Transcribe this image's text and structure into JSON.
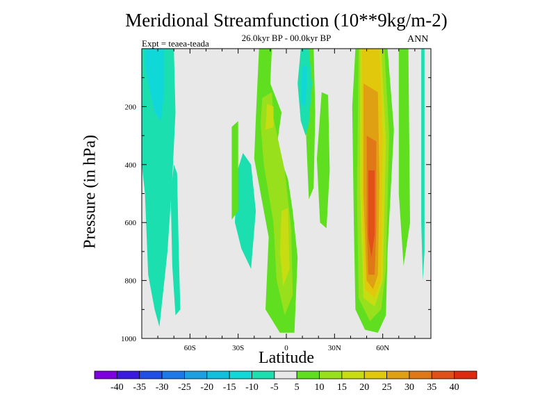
{
  "chart_data": {
    "type": "contour",
    "title": "Meridional Streamfunction (10**9kg/m-2)",
    "subtitle": "26.0kyr BP - 00.0kyr BP",
    "left_annotation": "Expt = teaea-teada",
    "right_annotation": "ANN",
    "xlabel": "Latitude",
    "ylabel": "Pressure (in hPa)",
    "xlim": [
      -90,
      90
    ],
    "ylim": [
      0,
      1000
    ],
    "y_inverted": true,
    "x_ticks": [
      {
        "value": -60,
        "label": "60S"
      },
      {
        "value": -30,
        "label": "30S"
      },
      {
        "value": 0,
        "label": "0"
      },
      {
        "value": 30,
        "label": "30N"
      },
      {
        "value": 60,
        "label": "60N"
      }
    ],
    "y_ticks": [
      {
        "value": 200,
        "label": "200"
      },
      {
        "value": 400,
        "label": "400"
      },
      {
        "value": 600,
        "label": "600"
      },
      {
        "value": 800,
        "label": "800"
      },
      {
        "value": 1000,
        "label": "1000"
      }
    ],
    "colorbar": {
      "levels": [
        "-40",
        "-35",
        "-30",
        "-25",
        "-20",
        "-15",
        "-10",
        "-5",
        "5",
        "10",
        "15",
        "20",
        "25",
        "30",
        "35",
        "40"
      ],
      "colors": [
        "#7f00df",
        "#3a1ae0",
        "#1f4fe6",
        "#1c7ae8",
        "#1ca0e2",
        "#12bfdc",
        "#10d8d8",
        "#1cdfb0",
        "#e8e8e8",
        "#5fdf20",
        "#99e01c",
        "#c8dc12",
        "#e2c80c",
        "#e0a014",
        "#e07818",
        "#e05018",
        "#dd2a10"
      ]
    },
    "regions": [
      {
        "name": "sh-column-light",
        "value": -7.5,
        "points": [
          [
            -90,
            0
          ],
          [
            -70,
            0
          ],
          [
            -69,
            220
          ],
          [
            -71,
            450
          ],
          [
            -74,
            700
          ],
          [
            -79,
            960
          ],
          [
            -82,
            900
          ],
          [
            -86,
            780
          ],
          [
            -88,
            500
          ],
          [
            -90,
            400
          ]
        ]
      },
      {
        "name": "sh-column-core",
        "value": -12.5,
        "points": [
          [
            -88,
            0
          ],
          [
            -76,
            0
          ],
          [
            -76,
            150
          ],
          [
            -78,
            250
          ],
          [
            -82,
            220
          ],
          [
            -86,
            120
          ],
          [
            -88,
            60
          ]
        ]
      },
      {
        "name": "sh-strip-60s",
        "value": -7.5,
        "points": [
          [
            -70,
            400
          ],
          [
            -68,
            430
          ],
          [
            -67,
            700
          ],
          [
            -66,
            900
          ],
          [
            -69,
            920
          ],
          [
            -71,
            750
          ],
          [
            -72,
            500
          ]
        ]
      },
      {
        "name": "sh-trough",
        "value": -7.5,
        "points": [
          [
            -31,
            430
          ],
          [
            -27,
            360
          ],
          [
            -22,
            400
          ],
          [
            -19,
            560
          ],
          [
            -22,
            760
          ],
          [
            -28,
            690
          ],
          [
            -32,
            600
          ]
        ]
      },
      {
        "name": "tropical-cell",
        "value": 7.5,
        "points": [
          [
            -17,
            0
          ],
          [
            -9,
            0
          ],
          [
            -10,
            120
          ],
          [
            -3,
            220
          ],
          [
            -6,
            340
          ],
          [
            1,
            450
          ],
          [
            4,
            560
          ],
          [
            7,
            720
          ],
          [
            5,
            980
          ],
          [
            -4,
            980
          ],
          [
            -13,
            900
          ],
          [
            -11,
            650
          ],
          [
            -20,
            380
          ],
          [
            -19,
            240
          ],
          [
            -18,
            120
          ]
        ]
      },
      {
        "name": "tropical-cell-inner",
        "value": 12.5,
        "points": [
          [
            -15,
            170
          ],
          [
            -9,
            150
          ],
          [
            -8,
            240
          ],
          [
            -1,
            420
          ],
          [
            3,
            620
          ],
          [
            4,
            850
          ],
          [
            -1,
            920
          ],
          [
            -6,
            800
          ],
          [
            -8,
            600
          ],
          [
            -14,
            400
          ],
          [
            -16,
            260
          ]
        ]
      },
      {
        "name": "tropical-core-upper",
        "value": 17.5,
        "points": [
          [
            -12,
            190
          ],
          [
            -8,
            200
          ],
          [
            -8,
            270
          ],
          [
            -13,
            280
          ]
        ]
      },
      {
        "name": "tropical-core-lower",
        "value": 17.5,
        "points": [
          [
            -3,
            560
          ],
          [
            1,
            550
          ],
          [
            2,
            760
          ],
          [
            -2,
            820
          ],
          [
            -4,
            700
          ]
        ]
      },
      {
        "name": "sh-subtropic-bar",
        "value": 7.5,
        "points": [
          [
            -34,
            270
          ],
          [
            -30,
            250
          ],
          [
            -30,
            560
          ],
          [
            -34,
            590
          ]
        ]
      },
      {
        "name": "nh-ferrel-thin",
        "value": 7.5,
        "points": [
          [
            14,
            0
          ],
          [
            17,
            0
          ],
          [
            18,
            220
          ],
          [
            17,
            480
          ],
          [
            14,
            520
          ],
          [
            12,
            260
          ]
        ]
      },
      {
        "name": "nh-neg-tongue",
        "value": -7.5,
        "points": [
          [
            9,
            0
          ],
          [
            14,
            0
          ],
          [
            16,
            120
          ],
          [
            14,
            260
          ],
          [
            12,
            300
          ],
          [
            9,
            250
          ],
          [
            7,
            120
          ]
        ]
      },
      {
        "name": "nh-neg-core",
        "value": -12.5,
        "points": [
          [
            10,
            60
          ],
          [
            13,
            60
          ],
          [
            12,
            200
          ],
          [
            9,
            190
          ]
        ]
      },
      {
        "name": "nh-mid-light",
        "value": 7.5,
        "points": [
          [
            22,
            150
          ],
          [
            26,
            160
          ],
          [
            27,
            420
          ],
          [
            25,
            620
          ],
          [
            21,
            600
          ],
          [
            19,
            380
          ]
        ]
      },
      {
        "name": "polar-cell-outer",
        "value": 7.5,
        "points": [
          [
            43,
            0
          ],
          [
            55,
            0
          ],
          [
            63,
            0
          ],
          [
            67,
            280
          ],
          [
            63,
            700
          ],
          [
            62,
            920
          ],
          [
            57,
            980
          ],
          [
            49,
            970
          ],
          [
            43,
            900
          ],
          [
            42,
            600
          ],
          [
            41,
            200
          ]
        ]
      },
      {
        "name": "polar-cell-2",
        "value": 12.5,
        "points": [
          [
            45,
            0
          ],
          [
            61,
            0
          ],
          [
            64,
            300
          ],
          [
            62,
            760
          ],
          [
            59,
            900
          ],
          [
            52,
            940
          ],
          [
            45,
            860
          ],
          [
            44,
            500
          ]
        ]
      },
      {
        "name": "polar-cell-3",
        "value": 17.5,
        "points": [
          [
            46,
            0
          ],
          [
            59,
            0
          ],
          [
            62,
            320
          ],
          [
            60,
            800
          ],
          [
            55,
            890
          ],
          [
            48,
            860
          ],
          [
            46,
            500
          ]
        ]
      },
      {
        "name": "polar-cell-4",
        "value": 22.5,
        "points": [
          [
            47,
            0
          ],
          [
            58,
            0
          ],
          [
            60,
            300
          ],
          [
            59,
            800
          ],
          [
            55,
            860
          ],
          [
            49,
            830
          ],
          [
            47,
            500
          ]
        ]
      },
      {
        "name": "polar-cell-5",
        "value": 27.5,
        "points": [
          [
            48,
            120
          ],
          [
            57,
            150
          ],
          [
            58,
            450
          ],
          [
            57,
            780
          ],
          [
            54,
            830
          ],
          [
            50,
            800
          ],
          [
            48,
            500
          ]
        ]
      },
      {
        "name": "polar-cell-6",
        "value": 32.5,
        "points": [
          [
            50,
            300
          ],
          [
            56,
            320
          ],
          [
            56,
            620
          ],
          [
            55,
            780
          ],
          [
            51,
            780
          ],
          [
            50,
            600
          ]
        ]
      },
      {
        "name": "polar-cell-core",
        "value": 37.5,
        "points": [
          [
            51,
            420
          ],
          [
            55,
            420
          ],
          [
            55,
            640
          ],
          [
            53,
            720
          ],
          [
            51,
            650
          ]
        ]
      },
      {
        "name": "nh-pos-edge",
        "value": 7.5,
        "points": [
          [
            70,
            0
          ],
          [
            76,
            0
          ],
          [
            77,
            600
          ],
          [
            73,
            750
          ],
          [
            70,
            500
          ]
        ]
      },
      {
        "name": "nh-polar-strip",
        "value": -7.5,
        "points": [
          [
            84,
            0
          ],
          [
            86,
            0
          ],
          [
            86,
            700
          ],
          [
            85,
            800
          ],
          [
            84,
            600
          ]
        ]
      }
    ]
  }
}
